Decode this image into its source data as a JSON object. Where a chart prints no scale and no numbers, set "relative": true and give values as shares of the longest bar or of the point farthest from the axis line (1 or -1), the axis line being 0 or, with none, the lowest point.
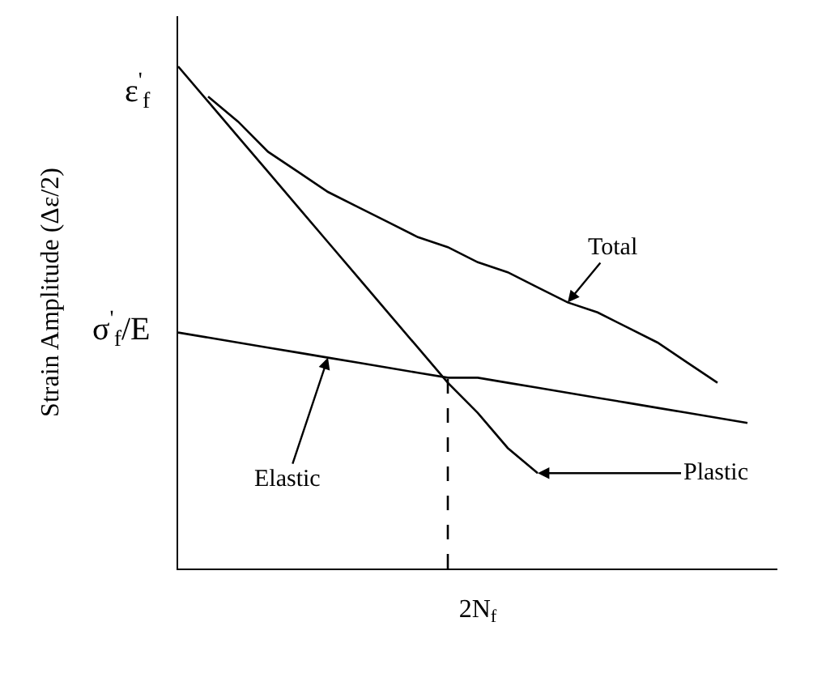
{
  "chart_data": {
    "type": "line",
    "relative": true,
    "xlabel": "2N$_{f}$",
    "ylabel": "Strain Amplitude (Δε/2)",
    "categories": [
      null,
      null,
      null,
      null,
      null,
      null,
      null,
      null,
      null,
      null,
      null,
      null,
      null,
      null,
      null,
      null,
      null,
      null,
      null,
      null,
      null
    ],
    "series": [
      {
        "name": "Total",
        "color": "#000000",
        "values": [
          null,
          0.94,
          0.89,
          0.83,
          0.79,
          0.75,
          0.72,
          0.69,
          0.66,
          0.64,
          0.61,
          0.59,
          0.56,
          0.53,
          0.51,
          0.48,
          0.45,
          0.41,
          0.37,
          null,
          null
        ]
      },
      {
        "name": "Elastic",
        "color": "#000000",
        "values": [
          0.47,
          0.46,
          0.45,
          0.44,
          0.43,
          0.42,
          0.41,
          0.4,
          0.39,
          0.38,
          0.38,
          0.37,
          0.36,
          0.35,
          0.34,
          0.33,
          0.32,
          0.31,
          0.3,
          0.29,
          null
        ]
      },
      {
        "name": "Plastic",
        "color": "#000000",
        "values": [
          1.0,
          0.93,
          0.86,
          0.79,
          0.72,
          0.65,
          0.58,
          0.51,
          0.44,
          0.37,
          0.31,
          0.24,
          0.19,
          null,
          null,
          null,
          null,
          null,
          null,
          null,
          null
        ]
      }
    ],
    "annotations": [
      "ε$^{'}$$_{f}$",
      "σ$^{'}$$_{f}$/E"
    ],
    "legend": false,
    "marker": "none",
    "line_style": "solid"
  }
}
